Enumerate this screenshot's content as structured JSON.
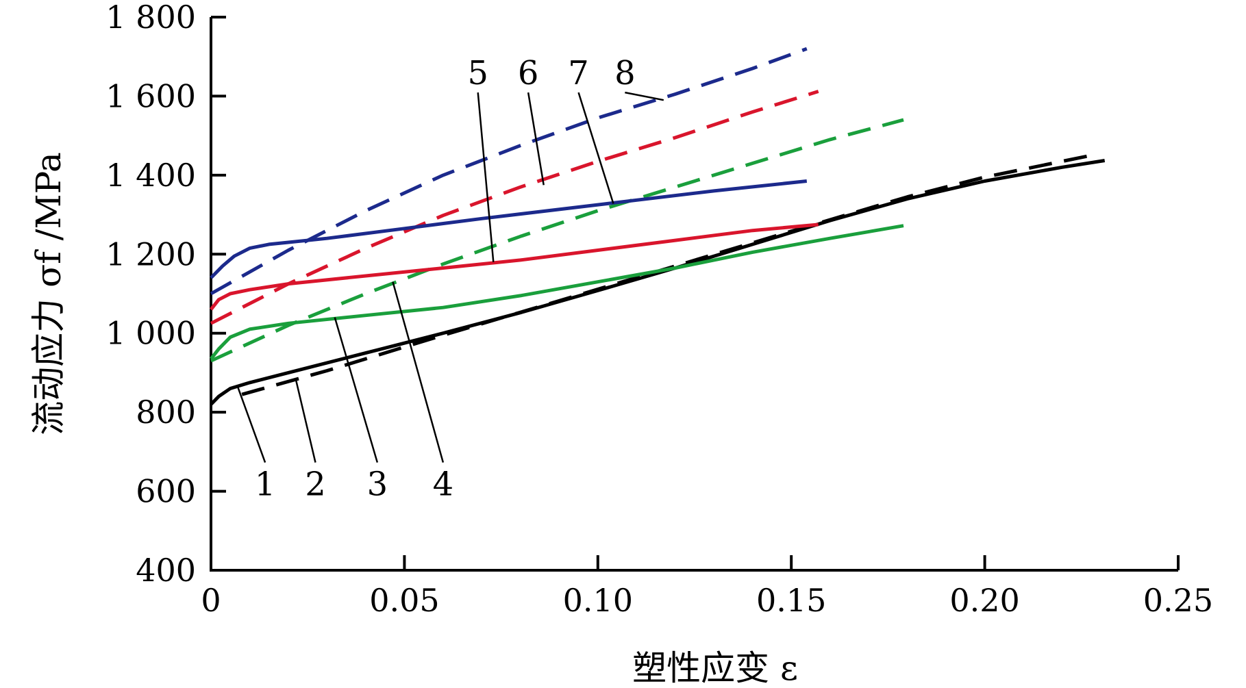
{
  "chart_data": {
    "type": "line",
    "xlabel": "塑性应变 ε",
    "ylabel": "流动应力 σf /MPa",
    "xlim": [
      0,
      0.25
    ],
    "ylim": [
      400,
      1800
    ],
    "x_ticks": [
      "0",
      "0.05",
      "0.10",
      "0.15",
      "0.20",
      "0.25"
    ],
    "y_ticks": [
      "400",
      "600",
      "800",
      "1 000",
      "1 200",
      "1 400",
      "1 600",
      "1 800"
    ],
    "grid": false,
    "colors": {
      "black": "#000000",
      "green": "#1a9f3c",
      "red": "#d9152c",
      "blue": "#1c2a8c"
    },
    "series": [
      {
        "name": "1",
        "color": "black",
        "dash": false,
        "x": [
          0,
          0.002,
          0.005,
          0.01,
          0.02,
          0.04,
          0.06,
          0.08,
          0.1,
          0.12,
          0.14,
          0.16,
          0.18,
          0.2,
          0.22,
          0.231
        ],
        "y": [
          820,
          840,
          860,
          875,
          900,
          950,
          1000,
          1052,
          1108,
          1165,
          1225,
          1285,
          1340,
          1385,
          1420,
          1437
        ]
      },
      {
        "name": "2",
        "color": "black",
        "dash": true,
        "x": [
          0.008,
          0.03,
          0.06,
          0.09,
          0.12,
          0.15,
          0.18,
          0.2,
          0.229
        ],
        "y": [
          845,
          905,
          995,
          1082,
          1170,
          1258,
          1345,
          1395,
          1453
        ]
      },
      {
        "name": "3",
        "color": "green",
        "dash": false,
        "x": [
          0,
          0.002,
          0.005,
          0.01,
          0.02,
          0.04,
          0.06,
          0.08,
          0.1,
          0.12,
          0.14,
          0.16,
          0.179
        ],
        "y": [
          935,
          960,
          990,
          1010,
          1025,
          1045,
          1065,
          1095,
          1130,
          1165,
          1205,
          1240,
          1272
        ]
      },
      {
        "name": "4",
        "color": "green",
        "dash": true,
        "x": [
          0,
          0.02,
          0.04,
          0.06,
          0.08,
          0.1,
          0.12,
          0.14,
          0.16,
          0.179
        ],
        "y": [
          930,
          1020,
          1100,
          1175,
          1245,
          1310,
          1370,
          1430,
          1490,
          1540
        ]
      },
      {
        "name": "5",
        "color": "red",
        "dash": false,
        "x": [
          0,
          0.002,
          0.005,
          0.01,
          0.02,
          0.04,
          0.06,
          0.08,
          0.1,
          0.12,
          0.14,
          0.157
        ],
        "y": [
          1060,
          1085,
          1100,
          1110,
          1125,
          1145,
          1165,
          1185,
          1210,
          1235,
          1260,
          1275
        ]
      },
      {
        "name": "6",
        "color": "red",
        "dash": true,
        "x": [
          0,
          0.02,
          0.04,
          0.06,
          0.08,
          0.1,
          0.12,
          0.14,
          0.157
        ],
        "y": [
          1025,
          1125,
          1215,
          1298,
          1370,
          1435,
          1495,
          1560,
          1612
        ]
      },
      {
        "name": "7",
        "color": "blue",
        "dash": false,
        "x": [
          0,
          0.003,
          0.006,
          0.01,
          0.015,
          0.02,
          0.03,
          0.05,
          0.07,
          0.1,
          0.13,
          0.154
        ],
        "y": [
          1140,
          1170,
          1195,
          1215,
          1225,
          1230,
          1240,
          1265,
          1290,
          1325,
          1360,
          1385
        ]
      },
      {
        "name": "8",
        "color": "blue",
        "dash": true,
        "x": [
          0,
          0.02,
          0.04,
          0.06,
          0.08,
          0.1,
          0.12,
          0.14,
          0.154
        ],
        "y": [
          1100,
          1210,
          1310,
          1400,
          1475,
          1545,
          1605,
          1670,
          1720
        ]
      }
    ],
    "callouts": [
      {
        "label": "1",
        "target": [
          0.007,
          862
        ],
        "label_at": [
          0.014,
          600
        ]
      },
      {
        "label": "2",
        "target": [
          0.022,
          880
        ],
        "label_at": [
          0.027,
          600
        ]
      },
      {
        "label": "3",
        "target": [
          0.032,
          1040
        ],
        "label_at": [
          0.043,
          600
        ]
      },
      {
        "label": "4",
        "target": [
          0.047,
          1130
        ],
        "label_at": [
          0.06,
          600
        ]
      },
      {
        "label": "5",
        "target": [
          0.073,
          1180
        ],
        "label_at": [
          0.069,
          1630
        ]
      },
      {
        "label": "6",
        "target": [
          0.086,
          1375
        ],
        "label_at": [
          0.082,
          1630
        ]
      },
      {
        "label": "7",
        "target": [
          0.104,
          1328
        ],
        "label_at": [
          0.095,
          1630
        ]
      },
      {
        "label": "8",
        "target": [
          0.117,
          1590
        ],
        "label_at": [
          0.107,
          1630
        ]
      }
    ]
  }
}
